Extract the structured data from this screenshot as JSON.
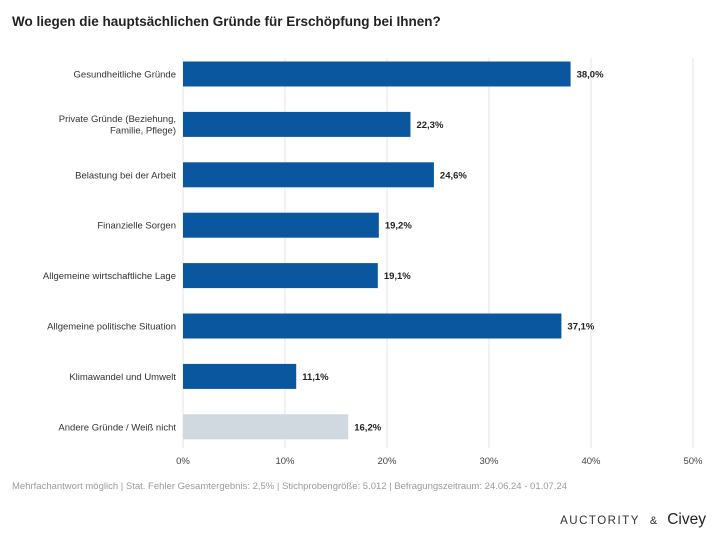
{
  "title": "Wo liegen die hauptsächlichen Gründe für Erschöpfung bei Ihnen?",
  "footnote": "Mehrfachantwort möglich | Stat. Fehler Gesamtergebnis: 2,5% | Stichprobengröße: 5.012 | Befragungszeitraum: 24.06.24 - 01.07.24",
  "logos": {
    "auctority": "AUCTORITY",
    "amp": "&",
    "civey": "Civey"
  },
  "colors": {
    "primary_bar": "#0A57A0",
    "secondary_bar": "#D1D9E0",
    "grid": "#E4E4E4"
  },
  "chart_data": {
    "type": "bar",
    "orientation": "horizontal",
    "categories": [
      "Gesundheitliche Gründe",
      "Private Gründe (Beziehung, Familie, Pflege)",
      "Belastung bei der Arbeit",
      "Finanzielle Sorgen",
      "Allgemeine wirtschaftliche Lage",
      "Allgemeine politische Situation",
      "Klimawandel und Umwelt",
      "Andere Gründe / Weiß nicht"
    ],
    "values": [
      38.0,
      22.3,
      24.6,
      19.2,
      19.1,
      37.1,
      11.1,
      16.2
    ],
    "value_labels": [
      "38,0%",
      "22,3%",
      "24,6%",
      "19,2%",
      "19,1%",
      "37,1%",
      "11,1%",
      "16,2%"
    ],
    "bar_colors": [
      "primary",
      "primary",
      "primary",
      "primary",
      "primary",
      "primary",
      "primary",
      "secondary"
    ],
    "xlim": [
      0,
      50
    ],
    "xticks": [
      0,
      10,
      20,
      30,
      40,
      50
    ],
    "xtick_labels": [
      "0%",
      "10%",
      "20%",
      "30%",
      "40%",
      "50%"
    ],
    "grid": true,
    "legend": "none"
  }
}
